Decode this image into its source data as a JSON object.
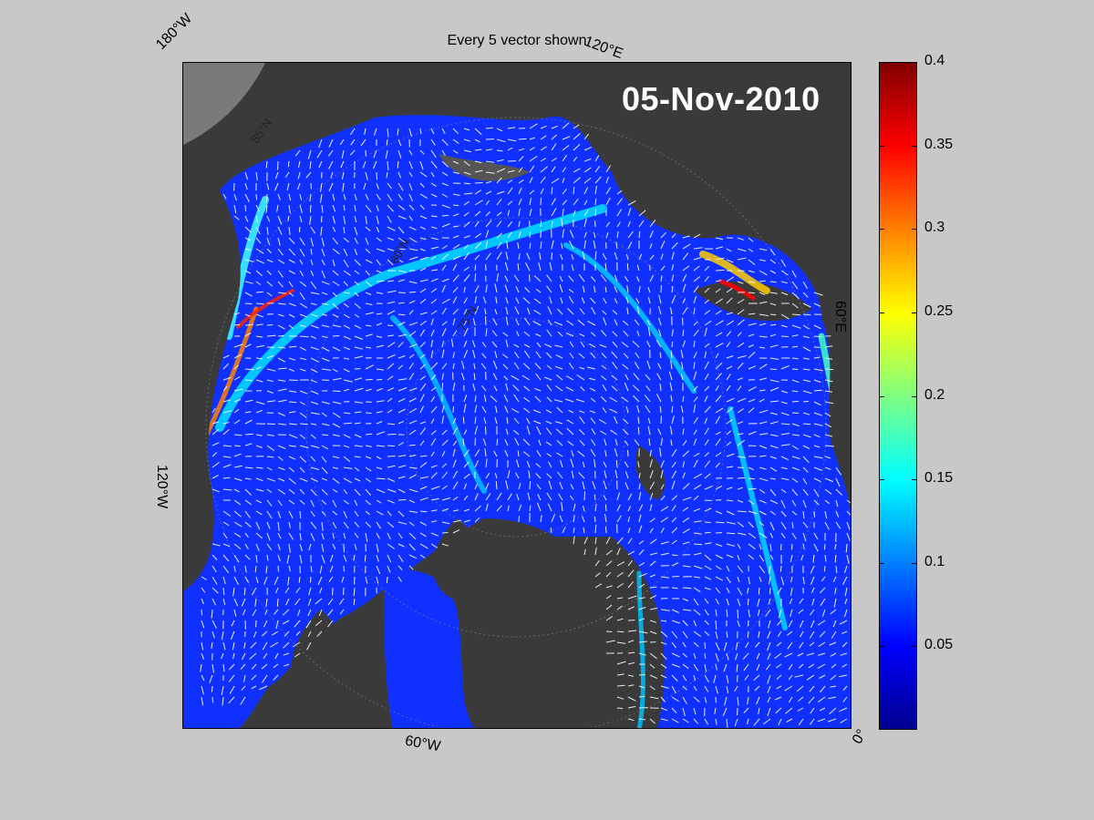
{
  "title": "Every 5 vector shown",
  "date": "05-Nov-2010",
  "longitude_labels": [
    "180°W",
    "120°E",
    "60°E",
    "0°",
    "60°W",
    "120°W"
  ],
  "latitude_labels": [
    "85°N",
    "80°N",
    "75°N"
  ],
  "colorbar": {
    "min": 0,
    "max": 0.4,
    "ticks": [
      "0.4",
      "0.35",
      "0.3",
      "0.25",
      "0.2",
      "0.15",
      "0.1",
      "0.05"
    ],
    "colormap": "jet"
  },
  "colors": {
    "background": "#c8c8c8",
    "land": "#3a3a3a",
    "ocean_ice_low": "#1030ff",
    "vector": "#ffffff"
  },
  "legend": {
    "date_label_position": "top-right"
  }
}
